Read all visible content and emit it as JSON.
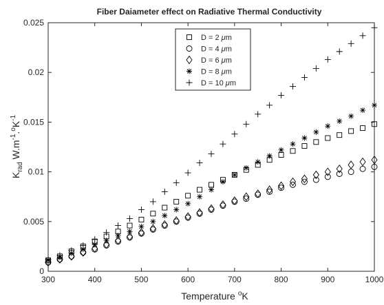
{
  "chart_data": {
    "type": "scatter",
    "title": "Fiber Daiameter effect on Radiative Thermal Conductivity",
    "xlabel": "Temperature",
    "xlabel_unit_sup": "o",
    "xlabel_unit": "K",
    "ylabel": {
      "K": "K",
      "sub": "rad",
      "unit1": " W.m",
      "sup1": "-1",
      "dot": ".",
      "sup2": "o",
      "unit2": "K",
      "sup3": "-1"
    },
    "xlim": [
      300,
      1000
    ],
    "ylim": [
      0,
      0.025
    ],
    "x_ticks": [
      300,
      400,
      500,
      600,
      700,
      800,
      900,
      1000
    ],
    "x_tick_labels": [
      "300",
      "400",
      "500",
      "600",
      "700",
      "800",
      "900",
      "1000"
    ],
    "y_ticks": [
      0,
      0.005,
      0.01,
      0.015,
      0.02,
      0.025
    ],
    "y_tick_labels": [
      "0",
      "0.005",
      "0.01",
      "0.015",
      "0.02",
      "0.025"
    ],
    "grid": false,
    "legend_position": "top-center",
    "x": [
      300,
      325,
      350,
      375,
      400,
      425,
      450,
      475,
      500,
      525,
      550,
      575,
      600,
      625,
      650,
      675,
      700,
      725,
      750,
      775,
      800,
      825,
      850,
      875,
      900,
      925,
      950,
      975,
      1000
    ],
    "series": [
      {
        "name": "D = 2 μm",
        "label_main": "D = 2 ",
        "label_mu": "μ",
        "label_unit": "m",
        "marker": "square",
        "values": [
          0.0011,
          0.0015,
          0.002,
          0.0025,
          0.003,
          0.0035,
          0.004,
          0.0046,
          0.0052,
          0.0058,
          0.0064,
          0.007,
          0.0076,
          0.0082,
          0.0087,
          0.0092,
          0.0097,
          0.0102,
          0.0107,
          0.0112,
          0.0117,
          0.0121,
          0.0126,
          0.013,
          0.0134,
          0.0137,
          0.0141,
          0.0144,
          0.0148
        ]
      },
      {
        "name": "D = 4 μm",
        "label_main": "D = 4 ",
        "label_mu": "μ",
        "label_unit": "m",
        "marker": "circle",
        "values": [
          0.0009,
          0.0012,
          0.0015,
          0.0019,
          0.0022,
          0.0026,
          0.003,
          0.0034,
          0.0038,
          0.0042,
          0.0046,
          0.005,
          0.0054,
          0.0058,
          0.0062,
          0.0066,
          0.007,
          0.0073,
          0.0077,
          0.008,
          0.0084,
          0.0087,
          0.009,
          0.0092,
          0.0095,
          0.0098,
          0.01,
          0.0103,
          0.0105
        ]
      },
      {
        "name": "D = 6 μm",
        "label_main": "D = 6 ",
        "label_mu": "μ",
        "label_unit": "m",
        "marker": "diamond",
        "values": [
          0.0009,
          0.0012,
          0.0015,
          0.0019,
          0.0023,
          0.0027,
          0.0031,
          0.0035,
          0.0039,
          0.0043,
          0.0047,
          0.0051,
          0.0055,
          0.0059,
          0.0063,
          0.0067,
          0.0071,
          0.0075,
          0.0078,
          0.0082,
          0.0086,
          0.009,
          0.0093,
          0.0097,
          0.01,
          0.0103,
          0.0107,
          0.011,
          0.0112
        ]
      },
      {
        "name": "D = 8 μm",
        "label_main": "D = 8 ",
        "label_mu": "μ",
        "label_unit": "m",
        "marker": "asterisk",
        "values": [
          0.0011,
          0.0014,
          0.0018,
          0.0022,
          0.0027,
          0.0031,
          0.0036,
          0.004,
          0.0045,
          0.005,
          0.0056,
          0.0062,
          0.0068,
          0.0075,
          0.0082,
          0.009,
          0.0097,
          0.0104,
          0.011,
          0.0116,
          0.0122,
          0.0128,
          0.0134,
          0.014,
          0.0146,
          0.0151,
          0.0156,
          0.0162,
          0.0167
        ]
      },
      {
        "name": "D = 10 μm",
        "label_main": "D = 10 ",
        "label_mu": "μ",
        "label_unit": "m",
        "marker": "plus",
        "values": [
          0.0012,
          0.0016,
          0.0021,
          0.0026,
          0.0032,
          0.0039,
          0.0046,
          0.0053,
          0.0062,
          0.007,
          0.008,
          0.0089,
          0.0099,
          0.0109,
          0.0118,
          0.0128,
          0.0138,
          0.0148,
          0.0158,
          0.0167,
          0.0177,
          0.0186,
          0.0195,
          0.0204,
          0.0213,
          0.0221,
          0.0229,
          0.0237,
          0.0245
        ]
      }
    ]
  }
}
